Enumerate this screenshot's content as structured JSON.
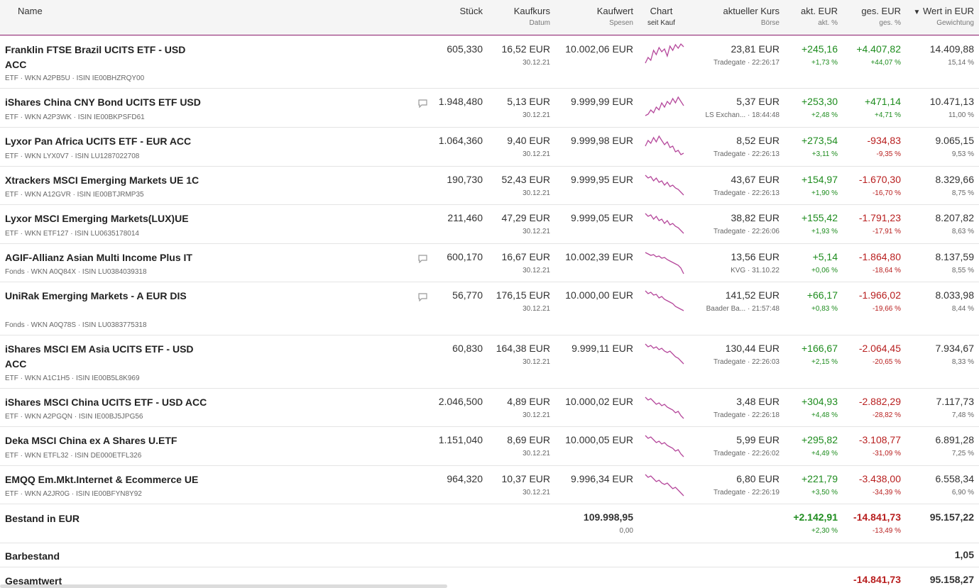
{
  "header": {
    "name": "Name",
    "stueck": "Stück",
    "kaufkurs": "Kaufkurs",
    "datum": "Datum",
    "kaufwert": "Kaufwert",
    "spesen": "Spesen",
    "chart": "Chart",
    "seit_kauf": "seit Kauf",
    "aktueller_kurs": "aktueller Kurs",
    "boerse": "Börse",
    "akt_eur": "akt. EUR",
    "akt_pct": "akt. %",
    "ges_eur": "ges. EUR",
    "ges_pct": "ges. %",
    "wert": "Wert in EUR",
    "gewichtung": "Gewichtung",
    "sort_icon": "chevron-down-icon"
  },
  "rows": [
    {
      "name": "Franklin FTSE Brazil UCITS ETF - USD ACC",
      "meta": "ETF · WKN A2PB5U · ISIN IE00BHZRQY00",
      "stueck": "605,330",
      "kaufkurs": "16,52 EUR",
      "datum": "30.12.21",
      "kaufwert": "10.002,06 EUR",
      "kurs": "23,81 EUR",
      "boerse": "Tradegate · 22:26:17",
      "akt_eur": "+245,16",
      "akt_pct": "+1,73 %",
      "ges_eur": "+4.407,82",
      "ges_pct": "+44,07 %",
      "wert": "14.409,88",
      "gewichtung": "15,14 %",
      "comment": false,
      "trend": [
        30,
        22,
        26,
        12,
        18,
        8,
        14,
        10,
        20,
        6,
        12,
        4,
        9,
        3,
        7
      ]
    },
    {
      "name": "iShares China CNY Bond UCITS ETF USD",
      "meta": "ETF · WKN A2P3WK · ISIN IE00BKPSFD61",
      "stueck": "1.948,480",
      "kaufkurs": "5,13 EUR",
      "datum": "30.12.21",
      "kaufwert": "9.999,99 EUR",
      "kurs": "5,37 EUR",
      "boerse": "LS Exchan... · 18:44:48",
      "akt_eur": "+253,30",
      "akt_pct": "+2,48 %",
      "ges_eur": "+471,14",
      "ges_pct": "+4,71 %",
      "wert": "10.471,13",
      "gewichtung": "11,00 %",
      "comment": true,
      "trend": [
        30,
        28,
        22,
        26,
        18,
        22,
        12,
        18,
        10,
        14,
        6,
        12,
        4,
        10,
        16
      ]
    },
    {
      "name": "Lyxor Pan Africa UCITS ETF - EUR ACC",
      "meta": "ETF · WKN LYX0V7 · ISIN LU1287022708",
      "stueck": "1.064,360",
      "kaufkurs": "9,40 EUR",
      "datum": "30.12.21",
      "kaufwert": "9.999,98 EUR",
      "kurs": "8,52 EUR",
      "boerse": "Tradegate · 22:26:13",
      "akt_eur": "+273,54",
      "akt_pct": "+3,11 %",
      "ges_eur": "-934,83",
      "ges_pct": "-9,35 %",
      "wert": "9.065,15",
      "gewichtung": "9,53 %",
      "comment": false,
      "trend": [
        18,
        10,
        14,
        6,
        12,
        4,
        10,
        16,
        12,
        20,
        18,
        26,
        24,
        30,
        28
      ]
    },
    {
      "name": "Xtrackers MSCI Emerging Markets UE 1C",
      "meta": "ETF · WKN A12GVR · ISIN IE00BTJRMP35",
      "stueck": "190,730",
      "kaufkurs": "52,43 EUR",
      "datum": "30.12.21",
      "kaufwert": "9.999,95 EUR",
      "kurs": "43,67 EUR",
      "boerse": "Tradegate · 22:26:13",
      "akt_eur": "+154,97",
      "akt_pct": "+1,90 %",
      "ges_eur": "-1.670,30",
      "ges_pct": "-16,70 %",
      "wert": "8.329,66",
      "gewichtung": "8,75 %",
      "comment": false,
      "trend": [
        4,
        8,
        6,
        12,
        8,
        14,
        12,
        18,
        14,
        20,
        18,
        22,
        24,
        28,
        32
      ]
    },
    {
      "name": "Lyxor MSCI Emerging Markets(LUX)UE",
      "meta": "ETF · WKN ETF127 · ISIN LU0635178014",
      "stueck": "211,460",
      "kaufkurs": "47,29 EUR",
      "datum": "30.12.21",
      "kaufwert": "9.999,05 EUR",
      "kurs": "38,82 EUR",
      "boerse": "Tradegate · 22:26:06",
      "akt_eur": "+155,42",
      "akt_pct": "+1,93 %",
      "ges_eur": "-1.791,23",
      "ges_pct": "-17,91 %",
      "wert": "8.207,82",
      "gewichtung": "8,63 %",
      "comment": false,
      "trend": [
        4,
        8,
        6,
        12,
        8,
        14,
        12,
        18,
        14,
        20,
        18,
        22,
        24,
        28,
        32
      ]
    },
    {
      "name": "AGIF-Allianz Asian Multi Income Plus IT",
      "meta": "Fonds · WKN A0Q84X · ISIN LU0384039318",
      "stueck": "600,170",
      "kaufkurs": "16,67 EUR",
      "datum": "30.12.21",
      "kaufwert": "10.002,39 EUR",
      "kurs": "13,56 EUR",
      "boerse": "KVG · 31.10.22",
      "akt_eur": "+5,14",
      "akt_pct": "+0,06 %",
      "ges_eur": "-1.864,80",
      "ges_pct": "-18,64 %",
      "wert": "8.137,59",
      "gewichtung": "8,55 %",
      "comment": true,
      "trend": [
        4,
        6,
        8,
        7,
        10,
        9,
        12,
        11,
        14,
        16,
        18,
        20,
        22,
        26,
        34
      ]
    },
    {
      "name": "UniRak Emerging Markets - A EUR DIS",
      "meta": "Fonds · WKN A0Q78S · ISIN LU0383775318",
      "stueck": "56,770",
      "kaufkurs": "176,15 EUR",
      "datum": "30.12.21",
      "kaufwert": "10.000,00 EUR",
      "kurs": "141,52 EUR",
      "boerse": "Baader Ba... · 21:57:48",
      "akt_eur": "+66,17",
      "akt_pct": "+0,83 %",
      "ges_eur": "-1.966,02",
      "ges_pct": "-19,66 %",
      "wert": "8.033,98",
      "gewichtung": "8,44 %",
      "comment": true,
      "trend": [
        4,
        8,
        6,
        10,
        9,
        14,
        12,
        16,
        18,
        20,
        22,
        26,
        28,
        30,
        32
      ]
    },
    {
      "name": "iShares MSCI EM Asia UCITS ETF - USD ACC",
      "meta": "ETF · WKN A1C1H5 · ISIN IE00B5L8K969",
      "stueck": "60,830",
      "kaufkurs": "164,38 EUR",
      "datum": "30.12.21",
      "kaufwert": "9.999,11 EUR",
      "kurs": "130,44 EUR",
      "boerse": "Tradegate · 22:26:03",
      "akt_eur": "+166,67",
      "akt_pct": "+2,15 %",
      "ges_eur": "-2.064,45",
      "ges_pct": "-20,65 %",
      "wert": "7.934,67",
      "gewichtung": "8,33 %",
      "comment": false,
      "trend": [
        4,
        8,
        6,
        10,
        8,
        12,
        10,
        14,
        16,
        14,
        18,
        22,
        24,
        28,
        32
      ]
    },
    {
      "name": "iShares MSCI China UCITS ETF - USD ACC",
      "meta": "ETF · WKN A2PGQN · ISIN IE00BJ5JPG56",
      "stueck": "2.046,500",
      "kaufkurs": "4,89 EUR",
      "datum": "30.12.21",
      "kaufwert": "10.000,02 EUR",
      "kurs": "3,48 EUR",
      "boerse": "Tradegate · 22:26:18",
      "akt_eur": "+304,93",
      "akt_pct": "+4,48 %",
      "ges_eur": "-2.882,29",
      "ges_pct": "-28,82 %",
      "wert": "7.117,73",
      "gewichtung": "7,48 %",
      "comment": false,
      "trend": [
        4,
        8,
        6,
        10,
        14,
        12,
        16,
        14,
        18,
        20,
        22,
        26,
        24,
        30,
        34
      ]
    },
    {
      "name": "Deka MSCI China ex A Shares U.ETF",
      "meta": "ETF · WKN ETFL32 · ISIN DE000ETFL326",
      "stueck": "1.151,040",
      "kaufkurs": "8,69 EUR",
      "datum": "30.12.21",
      "kaufwert": "10.000,05 EUR",
      "kurs": "5,99 EUR",
      "boerse": "Tradegate · 22:26:02",
      "akt_eur": "+295,82",
      "akt_pct": "+4,49 %",
      "ges_eur": "-3.108,77",
      "ges_pct": "-31,09 %",
      "wert": "6.891,28",
      "gewichtung": "7,25 %",
      "comment": false,
      "trend": [
        4,
        8,
        6,
        10,
        14,
        12,
        16,
        14,
        18,
        20,
        22,
        26,
        24,
        30,
        34
      ]
    },
    {
      "name": "EMQQ Em.Mkt.Internet & Ecommerce UE",
      "meta": "ETF · WKN A2JR0G · ISIN IE00BFYN8Y92",
      "stueck": "964,320",
      "kaufkurs": "10,37 EUR",
      "datum": "30.12.21",
      "kaufwert": "9.996,34 EUR",
      "kurs": "6,80 EUR",
      "boerse": "Tradegate · 22:26:19",
      "akt_eur": "+221,79",
      "akt_pct": "+3,50 %",
      "ges_eur": "-3.438,00",
      "ges_pct": "-34,39 %",
      "wert": "6.558,34",
      "gewichtung": "6,90 %",
      "comment": false,
      "trend": [
        4,
        8,
        6,
        10,
        14,
        12,
        16,
        18,
        16,
        20,
        24,
        22,
        26,
        30,
        34
      ]
    }
  ],
  "summary": {
    "bestand_label": "Bestand in EUR",
    "bestand_kaufwert": "109.998,95",
    "bestand_spesen": "0,00",
    "bestand_akt_eur": "+2.142,91",
    "bestand_akt_pct": "+2,30 %",
    "bestand_ges_eur": "-14.841,73",
    "bestand_ges_pct": "-13,49 %",
    "bestand_wert": "95.157,22",
    "barbestand_label": "Barbestand",
    "barbestand_wert": "1,05",
    "gesamt_label": "Gesamtwert",
    "gesamt_ges_eur": "-14.841,73",
    "gesamt_wert": "95.158,27"
  },
  "colors": {
    "accent": "#8a1a6b",
    "sparkline": "#b5479b",
    "positive": "#1e8c1e",
    "negative": "#b81e1e"
  }
}
